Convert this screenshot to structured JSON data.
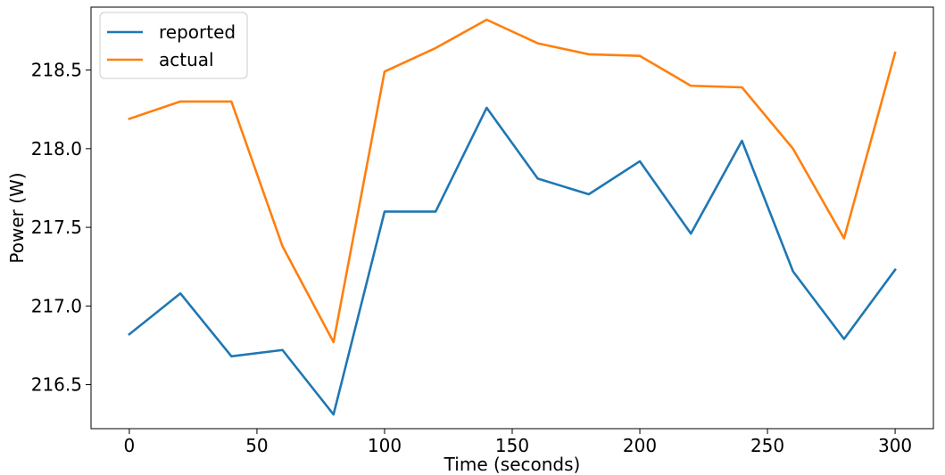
{
  "chart_data": {
    "type": "line",
    "title": "",
    "xlabel": "Time (seconds)",
    "ylabel": "Power (W)",
    "xlim": [
      -15,
      315
    ],
    "ylim": [
      216.22,
      218.9
    ],
    "xticks": [
      0,
      50,
      100,
      150,
      200,
      250,
      300
    ],
    "yticks": [
      216.5,
      217.0,
      217.5,
      218.0,
      218.5
    ],
    "ytick_labels": [
      "216.5",
      "217.0",
      "217.5",
      "218.0",
      "218.5"
    ],
    "grid": false,
    "legend_position": "top-left",
    "x": [
      0,
      20,
      40,
      60,
      80,
      100,
      120,
      140,
      160,
      180,
      200,
      220,
      240,
      260,
      280,
      300
    ],
    "series": [
      {
        "name": "reported",
        "color": "#1f77b4",
        "values": [
          216.82,
          217.08,
          216.68,
          216.72,
          216.31,
          217.6,
          217.6,
          218.26,
          217.81,
          217.71,
          217.92,
          217.46,
          218.05,
          217.22,
          216.79,
          217.23
        ]
      },
      {
        "name": "actual",
        "color": "#ff7f0e",
        "values": [
          218.19,
          218.3,
          218.3,
          217.38,
          216.77,
          218.49,
          218.64,
          218.82,
          218.67,
          218.6,
          218.59,
          218.4,
          218.39,
          218.0,
          217.43,
          218.61
        ]
      }
    ]
  }
}
